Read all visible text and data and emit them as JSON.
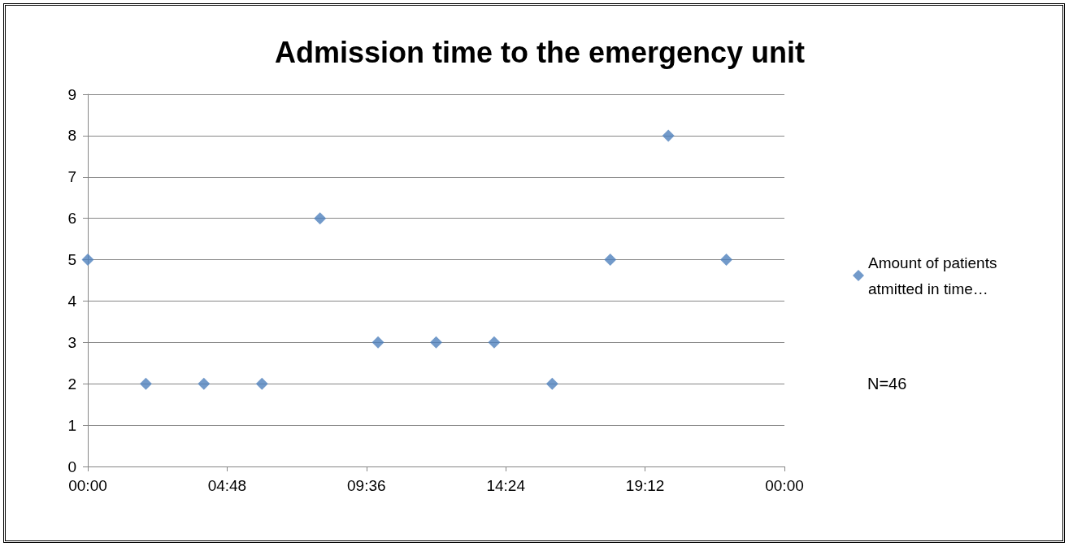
{
  "chart_data": {
    "type": "scatter",
    "title": "Admission time to the emergency unit",
    "x": [
      0,
      2,
      4,
      6,
      8,
      10,
      12,
      14,
      16,
      18,
      20,
      22
    ],
    "series": [
      {
        "name": "Amount of patients atmitted in time…",
        "color": "#4f81bd",
        "values": [
          5,
          2,
          2,
          2,
          6,
          3,
          3,
          3,
          2,
          5,
          8,
          5
        ]
      }
    ],
    "xlim": [
      0,
      24
    ],
    "xticks": [
      {
        "value": 0,
        "label": "00:00"
      },
      {
        "value": 4.8,
        "label": "04:48"
      },
      {
        "value": 9.6,
        "label": "09:36"
      },
      {
        "value": 14.4,
        "label": "14:24"
      },
      {
        "value": 19.2,
        "label": "19:12"
      },
      {
        "value": 24,
        "label": "00:00"
      }
    ],
    "ylim": [
      0,
      9
    ],
    "yticks": [
      0,
      1,
      2,
      3,
      4,
      5,
      6,
      7,
      8,
      9
    ],
    "grid": "y",
    "legend": "right",
    "marker": "diamond",
    "annotations": [
      "N=46"
    ]
  }
}
